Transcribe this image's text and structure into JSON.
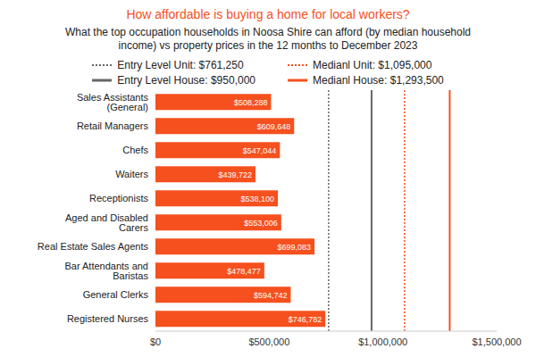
{
  "chart_data": {
    "type": "bar",
    "orientation": "horizontal",
    "title": "How affordable is buying a home for local workers?",
    "subtitle": "What the top occupation households in Noosa Shire can afford (by median household income) vs property prices in the 12 months to December 2023",
    "categories": [
      "Sales Assistants (General)",
      "Retail Managers",
      "Chefs",
      "Waiters",
      "Receptionists",
      "Aged and Disabled Carers",
      "Real Estate Sales Agents",
      "Bar Attendants and Baristas",
      "General Clerks",
      "Registered Nurses"
    ],
    "values": [
      508288,
      609648,
      547044,
      439722,
      538100,
      553006,
      699083,
      478477,
      594742,
      746782
    ],
    "value_labels": [
      "$508,288",
      "$609,648",
      "$547,044",
      "$439,722",
      "$538,100",
      "$553,006",
      "$699,083",
      "$478,477",
      "$594,742",
      "$746,782"
    ],
    "color": "#f5501e",
    "data_labels": true,
    "grid": false,
    "legend": "top",
    "xlim": [
      0,
      1500000
    ],
    "xticks": [
      {
        "value": 0,
        "label": "$0"
      },
      {
        "value": 500000,
        "label": "$500,000"
      },
      {
        "value": 1000000,
        "label": "$1,000,000"
      },
      {
        "value": 1500000,
        "label": "$1,500,000"
      }
    ],
    "reference_lines": [
      {
        "name": "Entry Level Unit: $761,250",
        "value": 761250,
        "color": "#666666",
        "line_style": "dotted"
      },
      {
        "name": "Medianl Unit: $1,095,000",
        "value": 1095000,
        "color": "#f5501e",
        "line_style": "dotted"
      },
      {
        "name": "Entry Level House: $950,000",
        "value": 950000,
        "color": "#666666",
        "line_style": "solid"
      },
      {
        "name": "Medianl House: $1,293,500",
        "value": 1293500,
        "color": "#f5501e",
        "line_style": "solid"
      }
    ]
  }
}
